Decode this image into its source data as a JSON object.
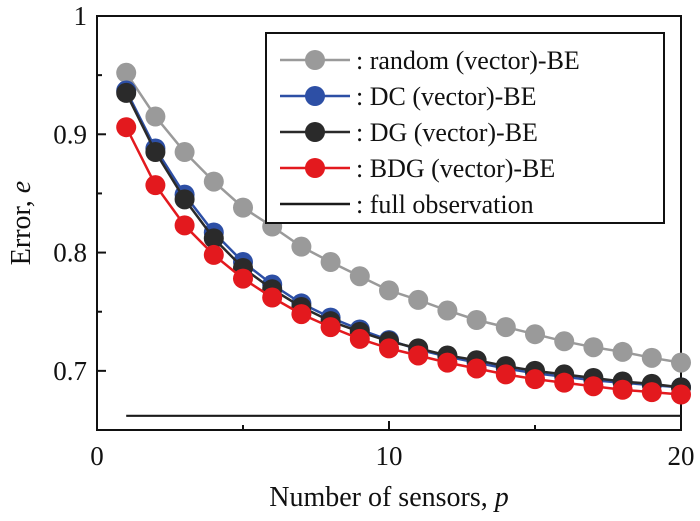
{
  "chart_data": {
    "type": "line",
    "xlabel": "Number of sensors, ",
    "xlabel_var": "p",
    "ylabel": "Error, ",
    "ylabel_var": "e",
    "xlim": [
      0,
      20
    ],
    "ylim": [
      0.65,
      1.0
    ],
    "xticks": [
      "0",
      "10",
      "20"
    ],
    "yticks": [
      "0.7",
      "0.8",
      "0.9",
      "1"
    ],
    "grid": false,
    "legend_position": "top-right",
    "x": [
      1,
      2,
      3,
      4,
      5,
      6,
      7,
      8,
      9,
      10,
      11,
      12,
      13,
      14,
      15,
      16,
      17,
      18,
      19,
      20
    ],
    "series": [
      {
        "name": ": random (vector)-BE",
        "color": "#9a9a9a",
        "values": [
          0.952,
          0.915,
          0.885,
          0.86,
          0.838,
          0.822,
          0.805,
          0.792,
          0.78,
          0.768,
          0.76,
          0.751,
          0.743,
          0.737,
          0.731,
          0.725,
          0.72,
          0.716,
          0.711,
          0.707
        ]
      },
      {
        "name": ": DC (vector)-BE",
        "color": "#2d4fa5",
        "values": [
          0.937,
          0.888,
          0.849,
          0.817,
          0.792,
          0.773,
          0.757,
          0.745,
          0.735,
          0.726,
          0.718,
          0.712,
          0.707,
          0.702,
          0.698,
          0.695,
          0.692,
          0.69,
          0.688,
          0.686
        ]
      },
      {
        "name": ": DG (vector)-BE",
        "color": "#2a2a2a",
        "values": [
          0.935,
          0.885,
          0.845,
          0.812,
          0.787,
          0.769,
          0.754,
          0.742,
          0.733,
          0.725,
          0.719,
          0.713,
          0.709,
          0.704,
          0.7,
          0.697,
          0.694,
          0.691,
          0.689,
          0.686
        ]
      },
      {
        "name": ": BDG (vector)-BE",
        "color": "#e3191e",
        "values": [
          0.906,
          0.857,
          0.823,
          0.798,
          0.778,
          0.762,
          0.748,
          0.737,
          0.727,
          0.719,
          0.713,
          0.707,
          0.702,
          0.697,
          0.693,
          0.69,
          0.687,
          0.684,
          0.682,
          0.68
        ]
      }
    ],
    "reference_line": {
      "name": ": full observation",
      "color": "#1a1a1a",
      "value": 0.662,
      "x_range": [
        1,
        20
      ]
    }
  }
}
